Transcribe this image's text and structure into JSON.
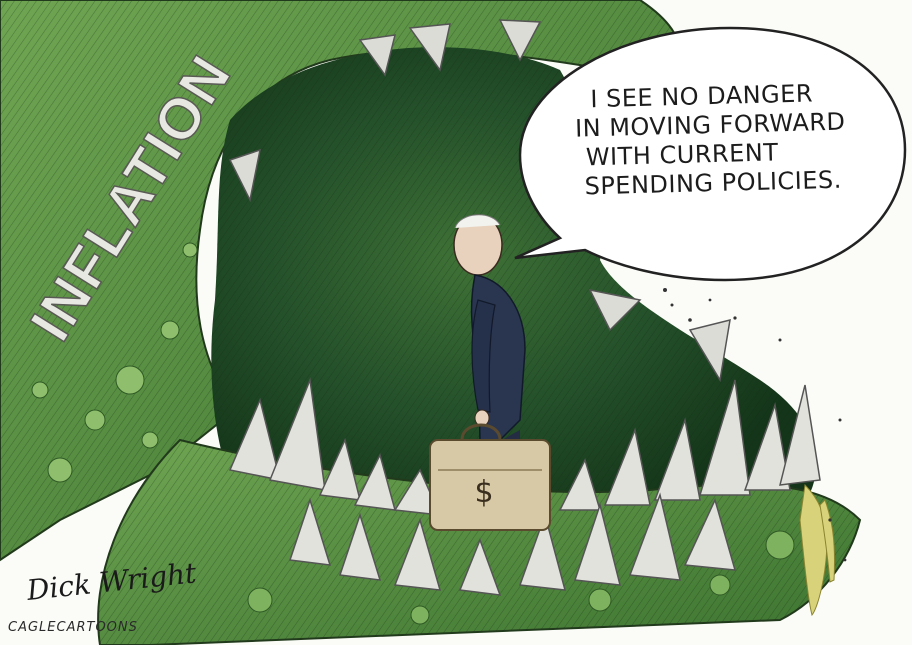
{
  "cartoon": {
    "speech_lines": [
      "I SEE NO DANGER",
      "IN MOVING FORWARD",
      "WITH CURRENT",
      "SPENDING POLICIES."
    ],
    "monster_label": "INFLATION",
    "briefcase_symbol": "$",
    "signature": "Dick Wright",
    "credit": "CAGLECARTOONS"
  },
  "colors": {
    "monster_skin": "#4f8a3a",
    "mouth_dark": "#1f4d22",
    "teeth": "#d9d9d4",
    "suit": "#2a3550",
    "bubble": "#ffffff",
    "ink": "#1c1c1c"
  }
}
